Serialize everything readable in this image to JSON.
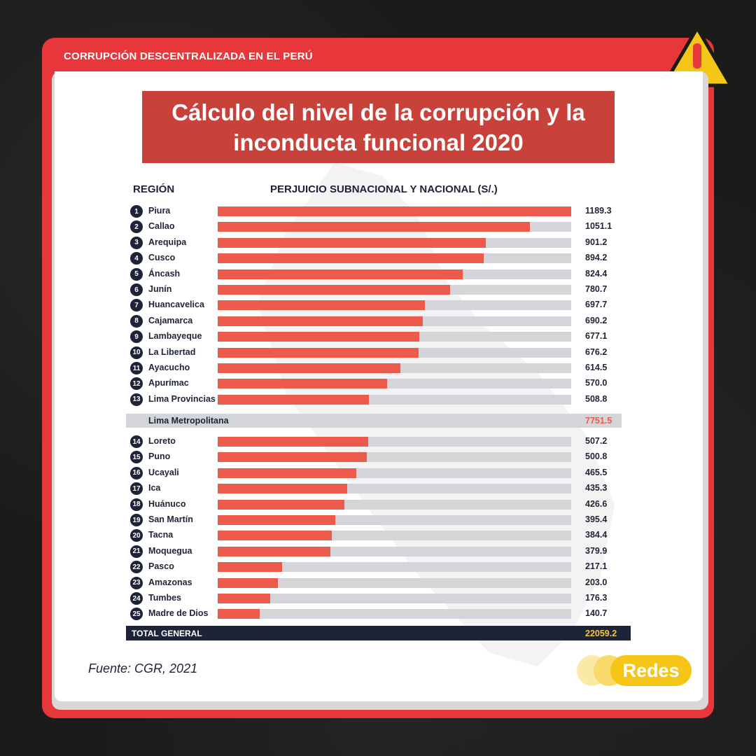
{
  "header": {
    "kicker": "CORRUPCIÓN DESCENTRALIZADA EN EL PERÚ"
  },
  "warning_icon": "warning-triangle-icon",
  "colors": {
    "frame": "#e8373a",
    "bar": "#ec5a4c",
    "track": "#d4d5d9",
    "navy": "#1e2438",
    "accent_yellow": "#f5c542"
  },
  "chart_data": {
    "type": "bar",
    "title": "Cálculo del nivel de la corrupción y la\ninconducta funcional 2020",
    "xlabel": "REGIÓN",
    "ylabel": "PERJUICIO SUBNACIONAL Y NACIONAL (S/.)",
    "max_value": 1189.3,
    "top_rows": [
      {
        "rank": "1",
        "name": "Piura",
        "value": 1189.3,
        "label": "1189.3"
      },
      {
        "rank": "2",
        "name": "Callao",
        "value": 1051.1,
        "label": "1051.1"
      },
      {
        "rank": "3",
        "name": "Arequipa",
        "value": 901.2,
        "label": "901.2"
      },
      {
        "rank": "4",
        "name": "Cusco",
        "value": 894.2,
        "label": "894.2"
      },
      {
        "rank": "5",
        "name": "Áncash",
        "value": 824.4,
        "label": "824.4"
      },
      {
        "rank": "6",
        "name": "Junín",
        "value": 780.7,
        "label": "780.7"
      },
      {
        "rank": "7",
        "name": "Huancavelica",
        "value": 697.7,
        "label": "697.7"
      },
      {
        "rank": "8",
        "name": "Cajamarca",
        "value": 690.2,
        "label": "690.2"
      },
      {
        "rank": "9",
        "name": "Lambayeque",
        "value": 677.1,
        "label": "677.1"
      },
      {
        "rank": "10",
        "name": "La Libertad",
        "value": 676.2,
        "label": "676.2"
      },
      {
        "rank": "11",
        "name": "Ayacucho",
        "value": 614.5,
        "label": "614.5"
      },
      {
        "rank": "12",
        "name": "Apurímac",
        "value": 570.0,
        "label": "570.0"
      },
      {
        "rank": "13",
        "name": "Lima Provincias",
        "value": 508.8,
        "label": "508.8"
      }
    ],
    "lima_metropolitana": {
      "name": "Lima Metropolitana",
      "value": 7751.5,
      "label": "7751.5"
    },
    "bottom_rows": [
      {
        "rank": "14",
        "name": "Loreto",
        "value": 507.2,
        "label": "507.2"
      },
      {
        "rank": "15",
        "name": "Puno",
        "value": 500.8,
        "label": "500.8"
      },
      {
        "rank": "16",
        "name": "Ucayali",
        "value": 465.5,
        "label": "465.5"
      },
      {
        "rank": "17",
        "name": "Ica",
        "value": 435.3,
        "label": "435.3"
      },
      {
        "rank": "18",
        "name": "Huánuco",
        "value": 426.6,
        "label": "426.6"
      },
      {
        "rank": "19",
        "name": "San Martín",
        "value": 395.4,
        "label": "395.4"
      },
      {
        "rank": "20",
        "name": "Tacna",
        "value": 384.4,
        "label": "384.4"
      },
      {
        "rank": "21",
        "name": "Moquegua",
        "value": 379.9,
        "label": "379.9"
      },
      {
        "rank": "22",
        "name": "Pasco",
        "value": 217.1,
        "label": "217.1"
      },
      {
        "rank": "23",
        "name": "Amazonas",
        "value": 203.0,
        "label": "203.0"
      },
      {
        "rank": "24",
        "name": "Tumbes",
        "value": 176.3,
        "label": "176.3"
      },
      {
        "rank": "25",
        "name": "Madre de Dios",
        "value": 140.7,
        "label": "140.7"
      }
    ],
    "total": {
      "name": "TOTAL GENERAL",
      "value": 22059.2,
      "label": "22059.2"
    }
  },
  "footer": {
    "source": "Fuente: CGR, 2021",
    "brand": "Redes"
  }
}
